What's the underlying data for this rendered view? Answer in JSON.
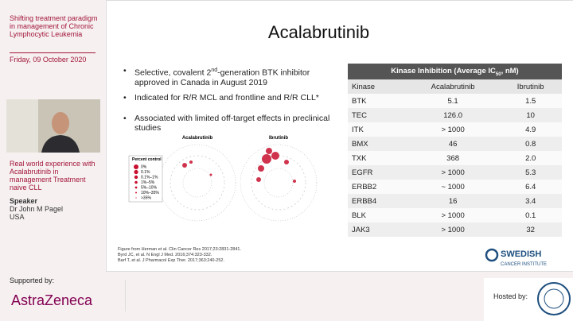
{
  "header": {
    "title": "Shifting treatment paradigm in management of Chronic Lymphocytic Leukemia",
    "date": "Friday, 09 October 2020"
  },
  "talk": {
    "title": "Real world experience with Acalabrutinib in management Treatment naive CLL",
    "speaker_heading": "Speaker",
    "speaker": "Dr John M Pagel",
    "country": "USA"
  },
  "slide": {
    "title": "Acalabrutinib",
    "bullets": [
      [
        "Selective, covalent 2",
        "nd",
        "-generation BTK inhibitor approved in Canada in August 2019"
      ],
      [
        "Indicated for R/R MCL and frontline and R/R CLL*"
      ],
      [
        "Associated with limited off-target effects in preclinical studies"
      ]
    ],
    "figure": {
      "panels": [
        "Acalabrutinib",
        "Ibrutinib"
      ],
      "legend_title": "Percent control",
      "legend": [
        "0%",
        "0.1%",
        "0.1%–1%",
        "1%–5%",
        "5%–10%",
        "10%–35%",
        ">35%"
      ]
    },
    "table": {
      "title": [
        "Kinase Inhibition (Average IC",
        "50",
        ", nM)"
      ],
      "columns": [
        "Kinase",
        "Acalabrutinib",
        "Ibrutinib"
      ],
      "rows": [
        [
          "BTK",
          "5.1",
          "1.5"
        ],
        [
          "TEC",
          "126.0",
          "10"
        ],
        [
          "ITK",
          "> 1000",
          "4.9"
        ],
        [
          "BMX",
          "46",
          "0.8"
        ],
        [
          "TXK",
          "368",
          "2.0"
        ],
        [
          "EGFR",
          "> 1000",
          "5.3"
        ],
        [
          "ERBB2",
          "~ 1000",
          "6.4"
        ],
        [
          "ERBB4",
          "16",
          "3.4"
        ],
        [
          "BLK",
          "> 1000",
          "0.1"
        ],
        [
          "JAK3",
          "> 1000",
          "32"
        ]
      ]
    },
    "references": [
      "Figure from Herman et al. Clin Cancer Res 2017;23:2831-2841.",
      "Byrd JC, et al. N Engl J Med. 2016;374:323-332.",
      "Barf T, et al. J Pharmacol Exp Ther. 2017;363:240-252."
    ],
    "logo": [
      "SWEDISH",
      "CANCER INSTITUTE"
    ]
  },
  "sponsor": {
    "label": "Supported by:",
    "name": "AstraZeneca"
  },
  "host": {
    "label": "Hosted by:"
  }
}
